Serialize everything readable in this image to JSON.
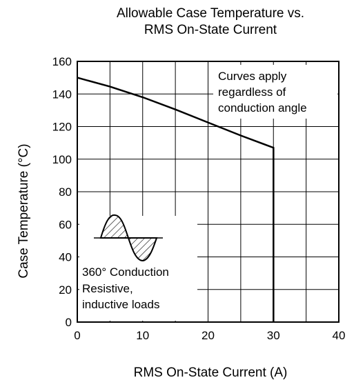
{
  "chart_data": {
    "type": "line",
    "title": [
      "Allowable Case Temperature vs.",
      "RMS On-State Current"
    ],
    "xlabel": "RMS On-State Current  (A)",
    "ylabel": "Case Temperature  (°C)",
    "xlim": [
      0,
      40
    ],
    "ylim": [
      0,
      160
    ],
    "xticks": [
      0,
      10,
      20,
      30,
      40
    ],
    "yticks": [
      0,
      20,
      40,
      60,
      80,
      100,
      120,
      140,
      160
    ],
    "grid": true,
    "series": [
      {
        "x": [
          0,
          5,
          10,
          15,
          20,
          25,
          30,
          30
        ],
        "y": [
          150,
          144.5,
          138,
          130.5,
          122.5,
          114.5,
          107,
          0
        ]
      }
    ],
    "annotations": {
      "top_right": [
        "Curves apply",
        "regardless of",
        "conduction angle"
      ],
      "bottom_left": [
        "360° Conduction",
        "Resistive,",
        "inductive loads"
      ]
    },
    "colors": {
      "line": "#000000",
      "background": "#ffffff"
    },
    "icons": {
      "waveform": "sine-wave-conduction-icon"
    }
  }
}
